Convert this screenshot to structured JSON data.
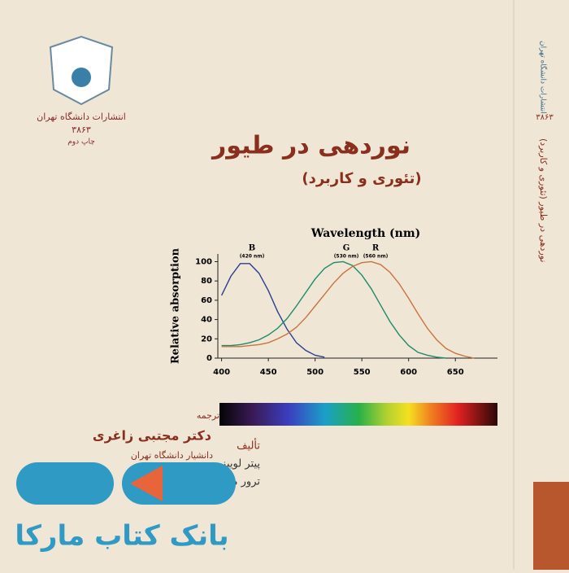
{
  "publisher": {
    "name": "انتشارات دانشگاه تهران",
    "number": "۳۸۶۳",
    "edition": "چاپ دوم"
  },
  "title": "نوردهی در طیور",
  "subtitle": "(تئوری و کاربرد)",
  "spine": {
    "publisher": "انتشارات دانشگاه تهران",
    "title": "نوردهی در طیور (تئوری و کاربرد)",
    "number": "۳۸۶۳"
  },
  "chart": {
    "type": "line",
    "title": "Wavelength (nm)",
    "ylabel": "Relative absorption",
    "annotations": [
      {
        "label": "B",
        "sub": "(420 nm)"
      },
      {
        "label": "G",
        "sub": "(530 nm)"
      },
      {
        "label": "R",
        "sub": "(560 nm)"
      }
    ],
    "x": [
      400,
      410,
      420,
      430,
      440,
      450,
      460,
      470,
      480,
      490,
      500,
      510,
      520,
      530,
      540,
      550,
      560,
      570,
      580,
      590,
      600,
      610,
      620,
      630,
      640,
      650,
      660,
      670
    ],
    "series": [
      {
        "name": "B",
        "color": "#2b3f8f",
        "values": [
          65,
          85,
          98,
          98,
          88,
          70,
          48,
          30,
          16,
          8,
          3,
          1,
          null,
          null,
          null,
          null,
          null,
          null,
          null,
          null,
          null,
          null,
          null,
          null,
          null,
          null,
          null,
          null
        ]
      },
      {
        "name": "G",
        "color": "#1f8a6a",
        "values": [
          13,
          13,
          14,
          16,
          19,
          24,
          31,
          41,
          54,
          68,
          82,
          93,
          99,
          100,
          96,
          86,
          72,
          55,
          38,
          24,
          13,
          6,
          3,
          1,
          0,
          null,
          null,
          null
        ]
      },
      {
        "name": "R",
        "color": "#c8743e",
        "values": [
          12,
          12,
          12,
          13,
          14,
          16,
          20,
          25,
          32,
          42,
          54,
          66,
          78,
          88,
          95,
          99,
          100,
          97,
          89,
          77,
          62,
          46,
          31,
          19,
          10,
          5,
          2,
          0
        ]
      }
    ],
    "xlim": [
      396,
      695
    ],
    "ylim": [
      0,
      108
    ],
    "xticks": [
      400,
      450,
      500,
      550,
      600,
      650
    ],
    "yticks": [
      0,
      20,
      40,
      60,
      80,
      100
    ]
  },
  "translator": {
    "role": "ترجمه",
    "name": "دکتر مجتبی زاغری",
    "position": "دانشیار دانشگاه تهران"
  },
  "authors": {
    "role": "تألیف",
    "names": [
      "پیتر لوییز",
      "ترور موریس"
    ]
  },
  "watermark": "بانک کتاب مارکا"
}
